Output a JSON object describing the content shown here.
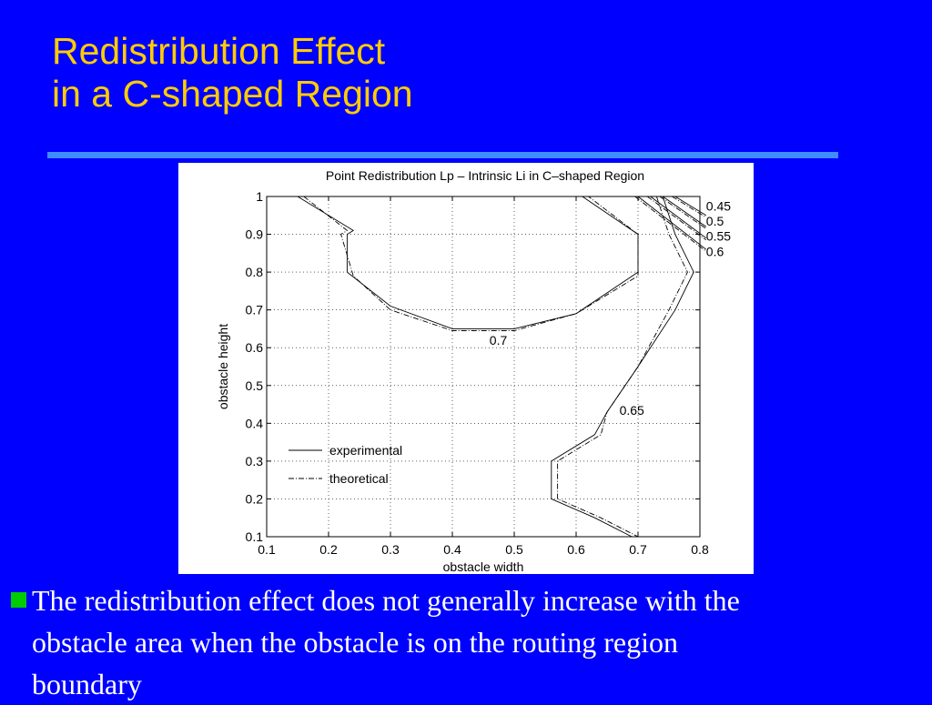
{
  "slide": {
    "title_line1": "Redistribution Effect",
    "title_line2": "in a C-shaped Region",
    "title_color": "#ffcc00",
    "background_color": "#0000ff",
    "rule_color": "#3f8cff",
    "bullet_color": "#00cc00",
    "bullet_line1": "The redistribution effect does not generally increase with the",
    "bullet_line2": "obstacle area when the obstacle is on the routing region",
    "bullet_line3": "boundary"
  },
  "chart_data": {
    "type": "line",
    "subtype": "contour",
    "title": "Point Redistribution Lp – Intrinsic Li in C–shaped Region",
    "xlabel": "obstacle width",
    "ylabel": "obstacle height",
    "xlim": [
      0.1,
      0.8
    ],
    "ylim": [
      0.1,
      1.0
    ],
    "xticks": [
      0.1,
      0.2,
      0.3,
      0.4,
      0.5,
      0.6,
      0.7,
      0.8
    ],
    "yticks": [
      0.1,
      0.2,
      0.3,
      0.4,
      0.5,
      0.6,
      0.7,
      0.8,
      0.9,
      1.0
    ],
    "xtick_labels": [
      "0.1",
      "0.2",
      "0.3",
      "0.4",
      "0.5",
      "0.6",
      "0.7",
      "0.8"
    ],
    "ytick_labels": [
      "0.1",
      "0.2",
      "0.3",
      "0.4",
      "0.5",
      "0.6",
      "0.7",
      "0.8",
      "0.9",
      "1"
    ],
    "grid": true,
    "grid_style": "dotted",
    "legend_position": "lower-left",
    "legend": [
      {
        "name": "experimental",
        "style": "solid"
      },
      {
        "name": "theoretical",
        "style": "dash-dot"
      }
    ],
    "contour_labels": [
      {
        "text": "0.45",
        "x": 0.81,
        "y": 0.975
      },
      {
        "text": "0.5",
        "x": 0.81,
        "y": 0.935
      },
      {
        "text": "0.55",
        "x": 0.81,
        "y": 0.895
      },
      {
        "text": "0.6",
        "x": 0.81,
        "y": 0.855
      },
      {
        "text": "0.7",
        "x": 0.46,
        "y": 0.62
      },
      {
        "text": "0.65",
        "x": 0.67,
        "y": 0.435
      }
    ],
    "series": [
      {
        "name": "experimental",
        "level": "0.7",
        "style": "solid",
        "x": [
          0.15,
          0.24,
          0.23,
          0.23,
          0.3,
          0.4,
          0.5,
          0.6,
          0.7,
          0.7,
          0.61
        ],
        "y": [
          1.0,
          0.91,
          0.9,
          0.8,
          0.71,
          0.65,
          0.65,
          0.69,
          0.8,
          0.9,
          1.0
        ]
      },
      {
        "name": "theoretical",
        "level": "0.7",
        "style": "dash-dot",
        "x": [
          0.16,
          0.23,
          0.22,
          0.24,
          0.3,
          0.4,
          0.5,
          0.6,
          0.7,
          0.7,
          0.62
        ],
        "y": [
          1.0,
          0.91,
          0.9,
          0.79,
          0.7,
          0.645,
          0.645,
          0.69,
          0.79,
          0.9,
          1.0
        ]
      },
      {
        "name": "experimental",
        "level": "0.65",
        "style": "solid",
        "x": [
          0.74,
          0.76,
          0.79,
          0.76,
          0.7,
          0.65,
          0.63,
          0.56,
          0.56,
          0.63,
          0.69
        ],
        "y": [
          1.0,
          0.9,
          0.8,
          0.7,
          0.55,
          0.43,
          0.37,
          0.3,
          0.2,
          0.15,
          0.1
        ]
      },
      {
        "name": "theoretical",
        "level": "0.65",
        "style": "dash-dot",
        "x": [
          0.73,
          0.75,
          0.78,
          0.75,
          0.7,
          0.65,
          0.64,
          0.57,
          0.57,
          0.64,
          0.7
        ],
        "y": [
          1.0,
          0.9,
          0.8,
          0.7,
          0.55,
          0.43,
          0.37,
          0.3,
          0.2,
          0.15,
          0.1
        ]
      },
      {
        "name": "experimental",
        "level": "0.6",
        "style": "solid",
        "x": [
          0.7,
          0.81
        ],
        "y": [
          1.0,
          0.86
        ]
      },
      {
        "name": "theoretical",
        "level": "0.6",
        "style": "dash-dot",
        "x": [
          0.695,
          0.81
        ],
        "y": [
          1.0,
          0.855
        ]
      },
      {
        "name": "experimental",
        "level": "0.55",
        "style": "solid",
        "x": [
          0.72,
          0.81
        ],
        "y": [
          1.0,
          0.89
        ]
      },
      {
        "name": "theoretical",
        "level": "0.55",
        "style": "dash-dot",
        "x": [
          0.715,
          0.81
        ],
        "y": [
          1.0,
          0.885
        ]
      },
      {
        "name": "experimental",
        "level": "0.5",
        "style": "solid",
        "x": [
          0.74,
          0.81
        ],
        "y": [
          1.0,
          0.92
        ]
      },
      {
        "name": "theoretical",
        "level": "0.5",
        "style": "dash-dot",
        "x": [
          0.735,
          0.81
        ],
        "y": [
          1.0,
          0.915
        ]
      },
      {
        "name": "experimental",
        "level": "0.45",
        "style": "solid",
        "x": [
          0.76,
          0.81
        ],
        "y": [
          1.0,
          0.95
        ]
      },
      {
        "name": "theoretical",
        "level": "0.45",
        "style": "dash-dot",
        "x": [
          0.755,
          0.81
        ],
        "y": [
          1.0,
          0.945
        ]
      }
    ]
  }
}
